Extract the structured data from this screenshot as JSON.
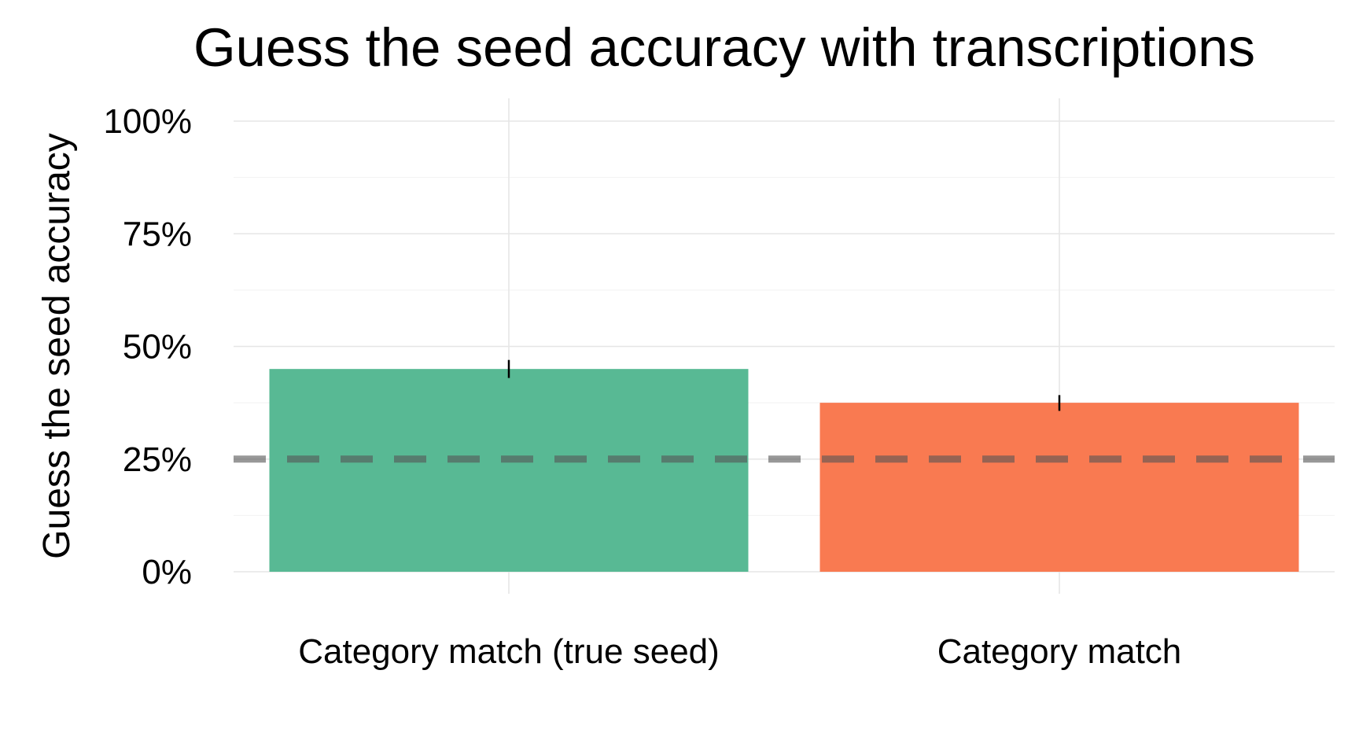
{
  "chart_data": {
    "type": "bar",
    "title": "Guess the seed accuracy with transcriptions",
    "xlabel": "",
    "ylabel": "Guess the seed accuracy",
    "categories": [
      "Category match (true seed)",
      "Category match"
    ],
    "values": [
      0.45,
      0.375
    ],
    "error_bars": [
      {
        "low": 0.43,
        "high": 0.47
      },
      {
        "low": 0.357,
        "high": 0.392
      }
    ],
    "colors": [
      "#58B994",
      "#F97A51"
    ],
    "ylim": [
      0,
      1
    ],
    "y_ticks": [
      0,
      0.25,
      0.5,
      0.75,
      1.0
    ],
    "y_tick_labels": [
      "0%",
      "25%",
      "50%",
      "75%",
      "100%"
    ],
    "reference_line": {
      "value": 0.25,
      "style": "dashed",
      "color": "#555555"
    },
    "grid": true,
    "legend": "none"
  }
}
